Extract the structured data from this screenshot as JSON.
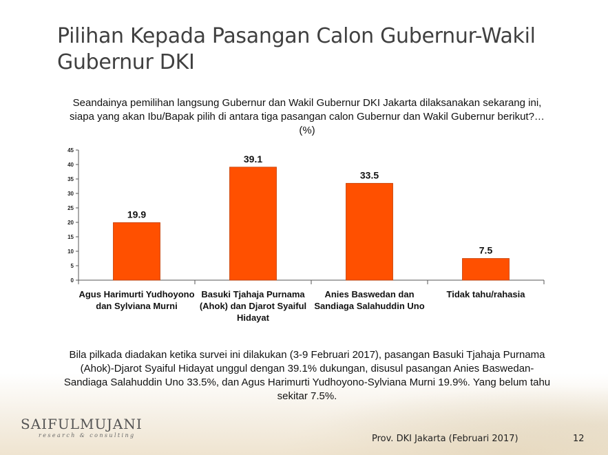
{
  "slide": {
    "title": "Pilihan Kepada Pasangan Calon Gubernur-Wakil Gubernur DKI",
    "question": "Seandainya pemilihan langsung Gubernur dan Wakil Gubernur DKI Jakarta dilaksanakan sekarang ini, siapa yang akan Ibu/Bapak pilih di antara tiga pasangan calon Gubernur dan Wakil Gubernur berikut?… (%)",
    "summary": "Bila pilkada diadakan ketika survei ini dilakukan (3-9 Februari 2017), pasangan Basuki Tjahaja Purnama (Ahok)-Djarot Syaiful Hidayat unggul dengan 39.1% dukungan, disusul pasangan Anies Baswedan-Sandiaga Salahuddin Uno 33.5%, dan Agus Harimurti Yudhoyono-Sylviana Murni 19.9%.  Yang belum tahu sekitar 7.5%.",
    "logo_main": "SAIFULMUJANI",
    "logo_sub": "research & consulting",
    "footer": "Prov. DKI Jakarta (Februari 2017)",
    "page_number": "12"
  },
  "chart_data": {
    "type": "bar",
    "categories": [
      "Agus Harimurti Yudhoyono dan Sylviana Murni",
      "Basuki Tjahaja Purnama (Ahok) dan Djarot Syaiful Hidayat",
      "Anies Baswedan dan Sandiaga Salahuddin Uno",
      "Tidak tahu/rahasia"
    ],
    "values": [
      19.9,
      39.1,
      33.5,
      7.5
    ],
    "value_labels": [
      "19.9",
      "39.1",
      "33.5",
      "7.5"
    ],
    "ylim": [
      0,
      45
    ],
    "yticks": [
      0,
      5,
      10,
      15,
      20,
      25,
      30,
      35,
      40,
      45
    ],
    "bar_color": "#ff5000",
    "grid": false,
    "legend": "none"
  }
}
